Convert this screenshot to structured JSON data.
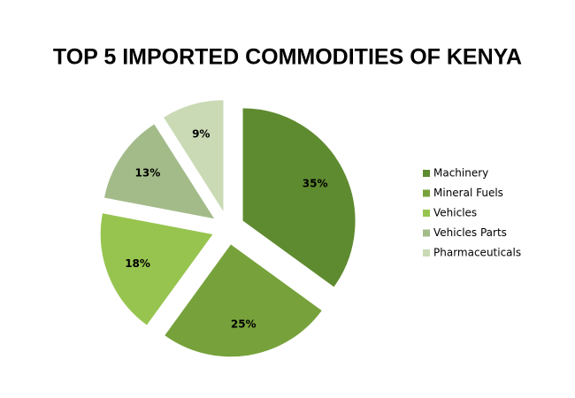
{
  "chart_data": {
    "type": "pie",
    "title": "TOP 5 IMPORTED COMMODITIES OF KENYA",
    "categories": [
      "Machinery",
      "Mineral Fuels",
      "Vehicles",
      "Vehicles Parts",
      "Pharmaceuticals"
    ],
    "values": [
      35,
      25,
      18,
      13,
      9
    ],
    "value_labels": [
      "35%",
      "25%",
      "18%",
      "13%",
      "9%"
    ],
    "colors": [
      "#5f8b30",
      "#77a23b",
      "#97c44f",
      "#a3bb89",
      "#c9dab5"
    ],
    "exploded": true,
    "legend": "right"
  }
}
